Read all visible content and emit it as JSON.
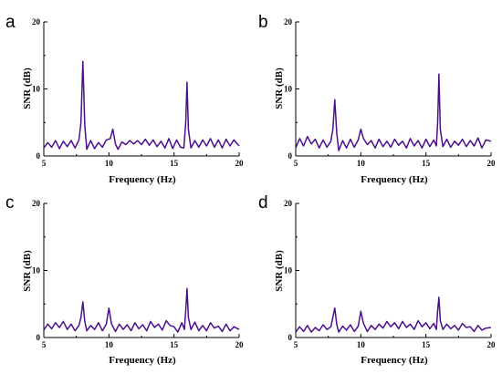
{
  "colors": {
    "series": "#4b0f8c",
    "axis": "#000000"
  },
  "chart_data": [
    {
      "panel": "a",
      "type": "line",
      "xlabel": "Frequency (Hz)",
      "ylabel": "SNR (dB)",
      "xlim": [
        5,
        20
      ],
      "ylim": [
        0,
        20
      ],
      "xticks": [
        5,
        10,
        15,
        20
      ],
      "yticks": [
        0,
        10,
        20
      ],
      "series": [
        {
          "x": [
            5,
            5.3,
            5.6,
            5.9,
            6.2,
            6.5,
            6.8,
            7.1,
            7.4,
            7.7,
            7.85,
            8,
            8.15,
            8.3,
            8.6,
            8.9,
            9.2,
            9.5,
            9.8,
            10.1,
            10.3,
            10.5,
            10.7,
            11,
            11.3,
            11.6,
            11.9,
            12.2,
            12.5,
            12.8,
            13.1,
            13.4,
            13.7,
            14,
            14.3,
            14.6,
            14.9,
            15.2,
            15.5,
            15.75,
            15.9,
            16,
            16.1,
            16.3,
            16.6,
            16.9,
            17.2,
            17.5,
            17.8,
            18.1,
            18.4,
            18.7,
            19,
            19.3,
            19.6,
            20
          ],
          "y": [
            1.2,
            2,
            1.3,
            2.3,
            1.1,
            2.2,
            1.4,
            2.3,
            1.2,
            2.4,
            5,
            14.1,
            4.5,
            1,
            2.3,
            1.1,
            2,
            1.3,
            2.4,
            2.6,
            4,
            1.8,
            1,
            2.1,
            1.7,
            2.3,
            1.8,
            2.3,
            1.7,
            2.5,
            1.6,
            2.4,
            1.4,
            2.2,
            1.2,
            2.6,
            1.1,
            2.4,
            1.3,
            1.2,
            5,
            11,
            4,
            1.2,
            2.3,
            1.3,
            2.4,
            1.5,
            2.6,
            1.3,
            2.4,
            1.2,
            2.5,
            1.5,
            2.4,
            1.5
          ]
        }
      ]
    },
    {
      "panel": "b",
      "type": "line",
      "xlabel": "Frequency (Hz)",
      "ylabel": "SNR (dB)",
      "xlim": [
        5,
        20
      ],
      "ylim": [
        0,
        20
      ],
      "xticks": [
        5,
        10,
        15,
        20
      ],
      "yticks": [
        0,
        10,
        20
      ],
      "series": [
        {
          "x": [
            5,
            5.3,
            5.6,
            5.9,
            6.2,
            6.5,
            6.8,
            7.1,
            7.4,
            7.7,
            7.85,
            8,
            8.15,
            8.3,
            8.6,
            8.9,
            9.2,
            9.5,
            9.8,
            10,
            10.2,
            10.5,
            10.8,
            11.1,
            11.4,
            11.7,
            12,
            12.3,
            12.6,
            12.9,
            13.2,
            13.5,
            13.8,
            14.1,
            14.4,
            14.7,
            15,
            15.3,
            15.6,
            15.8,
            15.9,
            16,
            16.1,
            16.3,
            16.6,
            16.9,
            17.2,
            17.5,
            17.8,
            18.1,
            18.4,
            18.7,
            19,
            19.3,
            19.6,
            20
          ],
          "y": [
            1.2,
            2.6,
            1.5,
            2.9,
            1.8,
            2.5,
            1.2,
            2.4,
            1.3,
            2.2,
            4,
            8.4,
            3.5,
            0.8,
            2.3,
            1.2,
            2.5,
            1.3,
            2.4,
            4,
            2.6,
            1.7,
            2.3,
            1.2,
            2.5,
            1.4,
            2.2,
            1.3,
            2.5,
            1.6,
            2.2,
            1.2,
            2.6,
            1.5,
            2.3,
            1.2,
            2.5,
            1.4,
            2.4,
            1.5,
            5,
            12.2,
            4,
            1.4,
            2.5,
            1.3,
            2.2,
            1.6,
            2.5,
            1.4,
            2.3,
            1.5,
            2.7,
            1.2,
            2.4,
            2.2
          ]
        }
      ]
    },
    {
      "panel": "c",
      "type": "line",
      "xlabel": "Frequency (Hz)",
      "ylabel": "SNR (dB)",
      "xlim": [
        5,
        20
      ],
      "ylim": [
        0,
        20
      ],
      "xticks": [
        5,
        10,
        15,
        20
      ],
      "yticks": [
        0,
        10,
        20
      ],
      "series": [
        {
          "x": [
            5,
            5.3,
            5.6,
            5.9,
            6.2,
            6.5,
            6.8,
            7.1,
            7.4,
            7.7,
            7.85,
            8,
            8.15,
            8.3,
            8.6,
            8.9,
            9.2,
            9.5,
            9.8,
            10,
            10.2,
            10.5,
            10.8,
            11.1,
            11.4,
            11.7,
            12,
            12.3,
            12.6,
            12.9,
            13.2,
            13.5,
            13.8,
            14.1,
            14.4,
            14.7,
            15,
            15.3,
            15.6,
            15.8,
            15.9,
            16,
            16.1,
            16.3,
            16.6,
            16.9,
            17.2,
            17.5,
            17.8,
            18.1,
            18.4,
            18.7,
            19,
            19.3,
            19.6,
            20
          ],
          "y": [
            1.1,
            2,
            1.3,
            2.2,
            1.5,
            2.4,
            1.2,
            2,
            1,
            1.8,
            3,
            5.3,
            2.4,
            1,
            1.8,
            1.2,
            2.2,
            1,
            2,
            4.4,
            2,
            0.9,
            2,
            1.2,
            1.9,
            1,
            2.2,
            1.3,
            1.9,
            1,
            2.4,
            1.5,
            2,
            1.1,
            2.5,
            1.8,
            1.6,
            0.8,
            2.2,
            1.2,
            4,
            7.3,
            3,
            1.2,
            2.3,
            1,
            1.8,
            1,
            2.2,
            1.4,
            1.7,
            0.9,
            2,
            1,
            1.6,
            1.2
          ]
        }
      ]
    },
    {
      "panel": "d",
      "type": "line",
      "xlabel": "Frequency (Hz)",
      "ylabel": "SNR (dB)",
      "xlim": [
        5,
        20
      ],
      "ylim": [
        0,
        20
      ],
      "xticks": [
        5,
        10,
        15,
        20
      ],
      "yticks": [
        0,
        10,
        20
      ],
      "series": [
        {
          "x": [
            5,
            5.3,
            5.6,
            5.9,
            6.2,
            6.5,
            6.8,
            7.1,
            7.4,
            7.7,
            7.85,
            8,
            8.15,
            8.3,
            8.6,
            8.9,
            9.2,
            9.5,
            9.8,
            10,
            10.2,
            10.5,
            10.8,
            11.1,
            11.4,
            11.7,
            12,
            12.3,
            12.6,
            12.9,
            13.2,
            13.5,
            13.8,
            14.1,
            14.4,
            14.7,
            15,
            15.3,
            15.6,
            15.8,
            15.9,
            16,
            16.1,
            16.3,
            16.6,
            16.9,
            17.2,
            17.5,
            17.8,
            18.1,
            18.4,
            18.7,
            19,
            19.3,
            19.6,
            20
          ],
          "y": [
            0.8,
            1.6,
            0.9,
            1.8,
            0.8,
            1.5,
            1,
            1.9,
            1.2,
            1.6,
            3,
            4.4,
            2,
            0.8,
            1.7,
            1.1,
            1.9,
            0.9,
            1.7,
            3.9,
            2.1,
            0.9,
            1.8,
            1.2,
            2,
            1.4,
            2.4,
            1.6,
            2.2,
            1.3,
            2.4,
            1.5,
            2,
            1.2,
            2.5,
            1.6,
            2.2,
            1.3,
            2.1,
            1.2,
            4,
            6,
            2.5,
            1.2,
            2,
            1.3,
            1.8,
            1.1,
            2.1,
            1.5,
            1.6,
            0.9,
            1.8,
            1.1,
            1.4,
            1.5
          ]
        }
      ]
    }
  ]
}
